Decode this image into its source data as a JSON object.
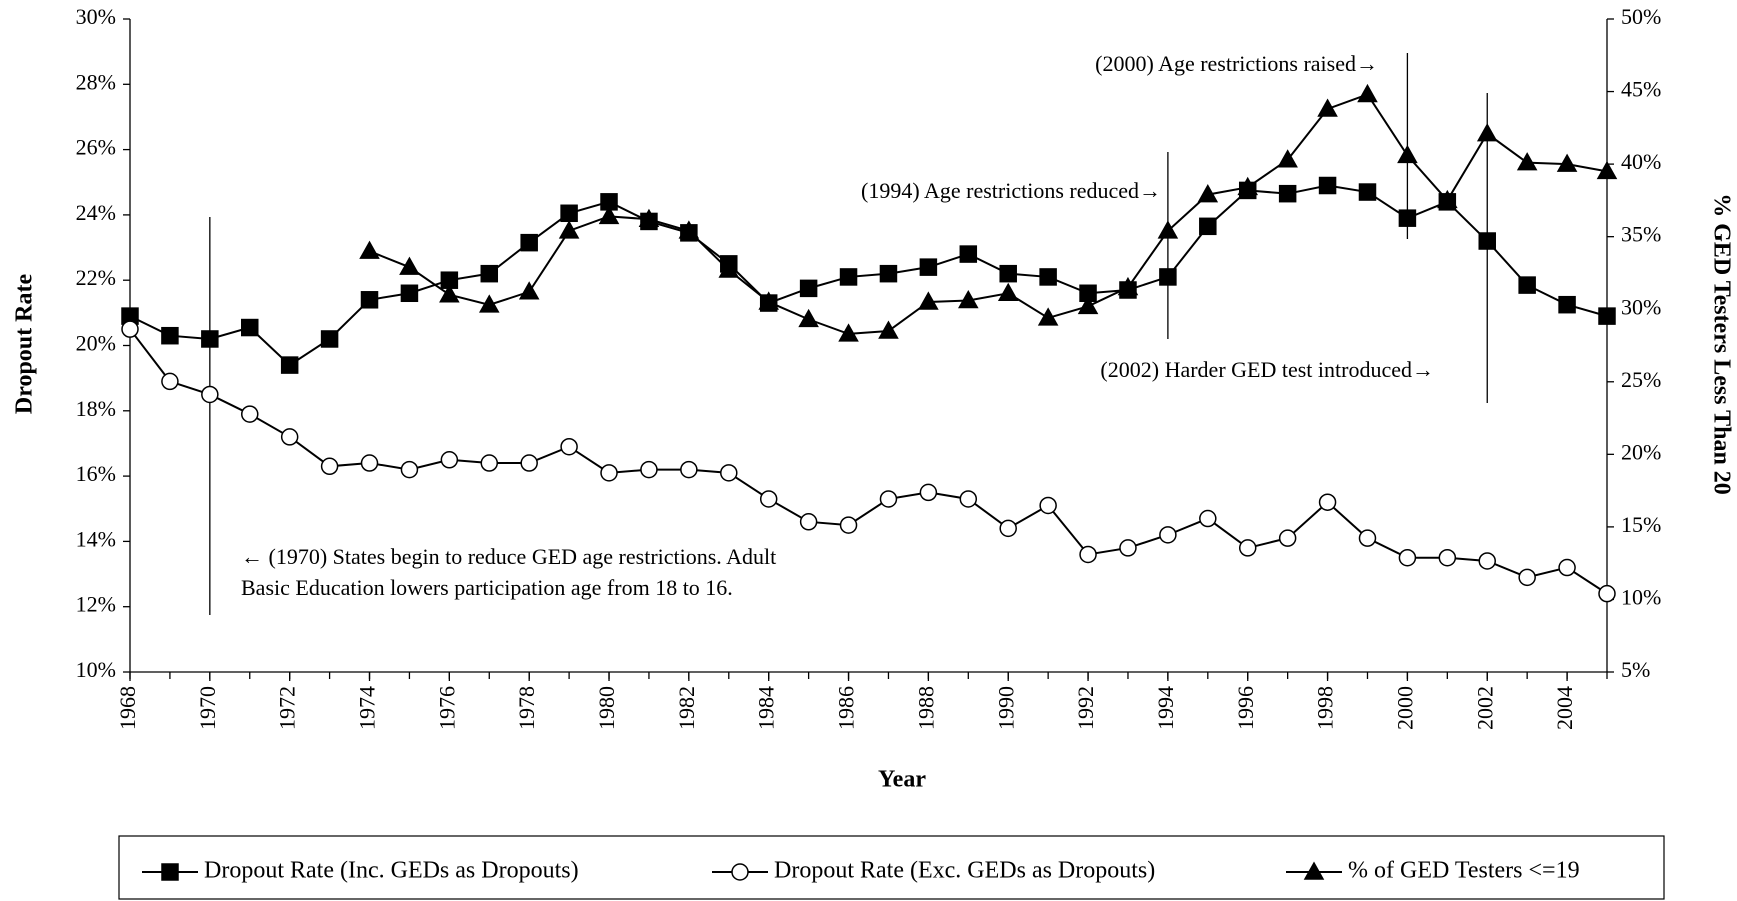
{
  "chart_data": {
    "type": "line",
    "x_label": "Year",
    "y_label": "Dropout Rate",
    "y2_label": "% GED Testers Less Than 20",
    "x": [
      1968,
      1969,
      1970,
      1971,
      1972,
      1973,
      1974,
      1975,
      1976,
      1977,
      1978,
      1979,
      1980,
      1981,
      1982,
      1983,
      1984,
      1985,
      1986,
      1987,
      1988,
      1989,
      1990,
      1991,
      1992,
      1993,
      1994,
      1995,
      1996,
      1997,
      1998,
      1999,
      2000,
      2001,
      2002,
      2003,
      2004,
      2005
    ],
    "xlim": [
      1968,
      2005
    ],
    "xticks": [
      1968,
      1970,
      1972,
      1974,
      1976,
      1978,
      1980,
      1982,
      1984,
      1986,
      1988,
      1990,
      1992,
      1994,
      1996,
      1998,
      2000,
      2002,
      2004
    ],
    "ylim": [
      10,
      30
    ],
    "yticks": [
      {
        "value": 10,
        "label": "10%"
      },
      {
        "value": 12,
        "label": "12%"
      },
      {
        "value": 14,
        "label": "14%"
      },
      {
        "value": 16,
        "label": "16%"
      },
      {
        "value": 18,
        "label": "18%"
      },
      {
        "value": 20,
        "label": "20%"
      },
      {
        "value": 22,
        "label": "22%"
      },
      {
        "value": 24,
        "label": "24%"
      },
      {
        "value": 26,
        "label": "26%"
      },
      {
        "value": 28,
        "label": "28%"
      },
      {
        "value": 30,
        "label": "30%"
      }
    ],
    "y2lim": [
      5,
      50
    ],
    "y2ticks": [
      {
        "value": 5,
        "label": "5%"
      },
      {
        "value": 10,
        "label": "10%"
      },
      {
        "value": 15,
        "label": "15%"
      },
      {
        "value": 20,
        "label": "20%"
      },
      {
        "value": 25,
        "label": "25%"
      },
      {
        "value": 30,
        "label": "30%"
      },
      {
        "value": 35,
        "label": "35%"
      },
      {
        "value": 40,
        "label": "40%"
      },
      {
        "value": 45,
        "label": "45%"
      },
      {
        "value": 50,
        "label": "50%"
      }
    ],
    "series": [
      {
        "name": "Dropout Rate (Inc. GEDs as Dropouts)",
        "color": "#000000",
        "marker": "square",
        "values": [
          20.9,
          20.3,
          20.2,
          20.55,
          19.4,
          20.2,
          21.4,
          21.6,
          22.0,
          22.2,
          23.15,
          24.05,
          24.4,
          23.8,
          23.45,
          22.5,
          21.3,
          21.75,
          22.1,
          22.2,
          22.4,
          22.8,
          22.2,
          22.1,
          21.6,
          21.7,
          22.1,
          23.65,
          24.75,
          24.65,
          24.9,
          24.7,
          23.9,
          24.4,
          23.2,
          21.85,
          21.25,
          20.9
        ]
      },
      {
        "name": "Dropout Rate (Exc. GEDs as Dropouts)",
        "color": "#000000",
        "marker": "circle",
        "values": [
          20.5,
          18.9,
          18.5,
          17.9,
          17.2,
          16.3,
          16.4,
          16.2,
          16.5,
          16.4,
          16.4,
          16.9,
          16.1,
          16.2,
          16.2,
          16.1,
          15.3,
          14.6,
          14.5,
          15.3,
          15.5,
          15.3,
          14.4,
          15.1,
          13.6,
          13.8,
          14.2,
          14.7,
          13.8,
          14.1,
          15.2,
          14.1,
          13.5,
          13.5,
          13.4,
          12.9,
          13.2,
          12.4
        ]
      },
      {
        "name": "% of GED Testers <=19",
        "color": "#000000",
        "marker": "triangle",
        "axis": "y2",
        "values": [
          null,
          null,
          null,
          null,
          null,
          null,
          34.0,
          32.9,
          31.0,
          30.3,
          31.2,
          35.4,
          36.4,
          36.2,
          35.4,
          32.7,
          30.5,
          29.3,
          28.3,
          28.5,
          30.5,
          30.6,
          31.1,
          29.4,
          30.2,
          31.5,
          35.4,
          37.9,
          38.4,
          40.3,
          43.8,
          44.8,
          40.6,
          37.5,
          42.1,
          40.1,
          40.0,
          39.5
        ]
      }
    ],
    "annotations": [
      {
        "x": 1970,
        "lines": [
          "← (1970) States begin to reduce GED age restrictions. Adult",
          "Basic Education lowers participation age from 18 to 16."
        ]
      },
      {
        "x": 1994,
        "lines": [
          "(1994) Age restrictions reduced→"
        ]
      },
      {
        "x": 2000,
        "lines": [
          "(2000) Age restrictions raised→"
        ]
      },
      {
        "x": 2002,
        "lines": [
          "(2002) Harder GED  test introduced→"
        ]
      }
    ],
    "legend": "bottom"
  }
}
